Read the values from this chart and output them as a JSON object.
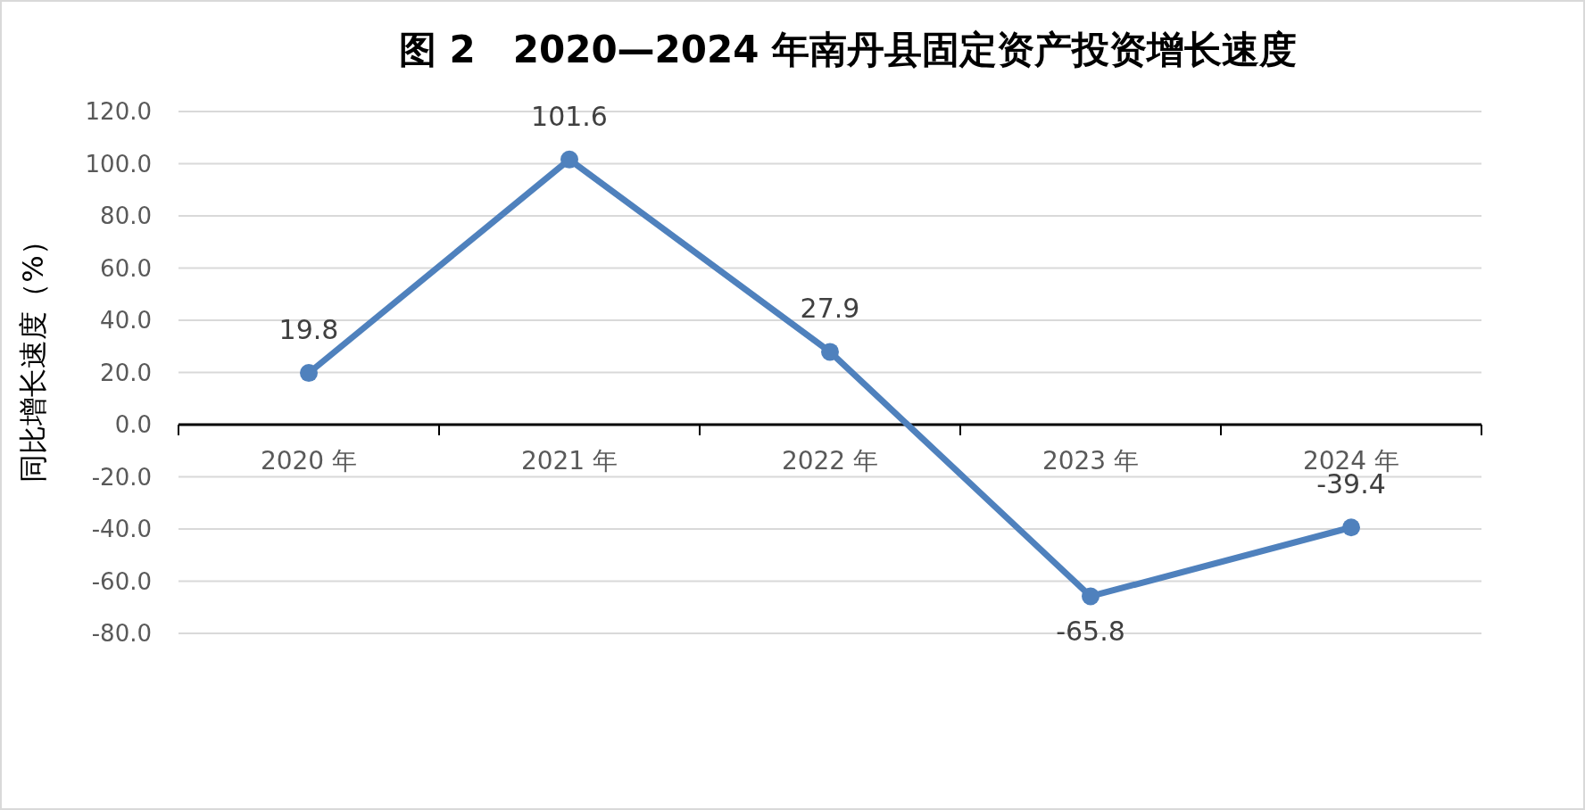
{
  "chart_data": {
    "type": "line",
    "title": "图 2　2020—2024 年南丹县固定资产投资增长速度",
    "ylabel": "同比增长速度（%）",
    "categories": [
      "2020 年",
      "2021 年",
      "2022 年",
      "2023 年",
      "2024 年"
    ],
    "series": [
      {
        "color": "#4f81bd",
        "values": [
          19.8,
          101.6,
          27.9,
          -65.8,
          -39.4
        ]
      }
    ],
    "ylim": [
      -80,
      120
    ],
    "yticks": [
      {
        "value": -80,
        "label": "-80.0"
      },
      {
        "value": -60,
        "label": "-60.0"
      },
      {
        "value": -40,
        "label": "-40.0"
      },
      {
        "value": -20,
        "label": "-20.0"
      },
      {
        "value": 0,
        "label": "0.0"
      },
      {
        "value": 20,
        "label": "20.0"
      },
      {
        "value": 40,
        "label": "40.0"
      },
      {
        "value": 60,
        "label": "60.0"
      },
      {
        "value": 80,
        "label": "80.0"
      },
      {
        "value": 100,
        "label": "100.0"
      },
      {
        "value": 120,
        "label": "120.0"
      }
    ],
    "grid": "y",
    "marker": "circle",
    "data_labels": true
  }
}
